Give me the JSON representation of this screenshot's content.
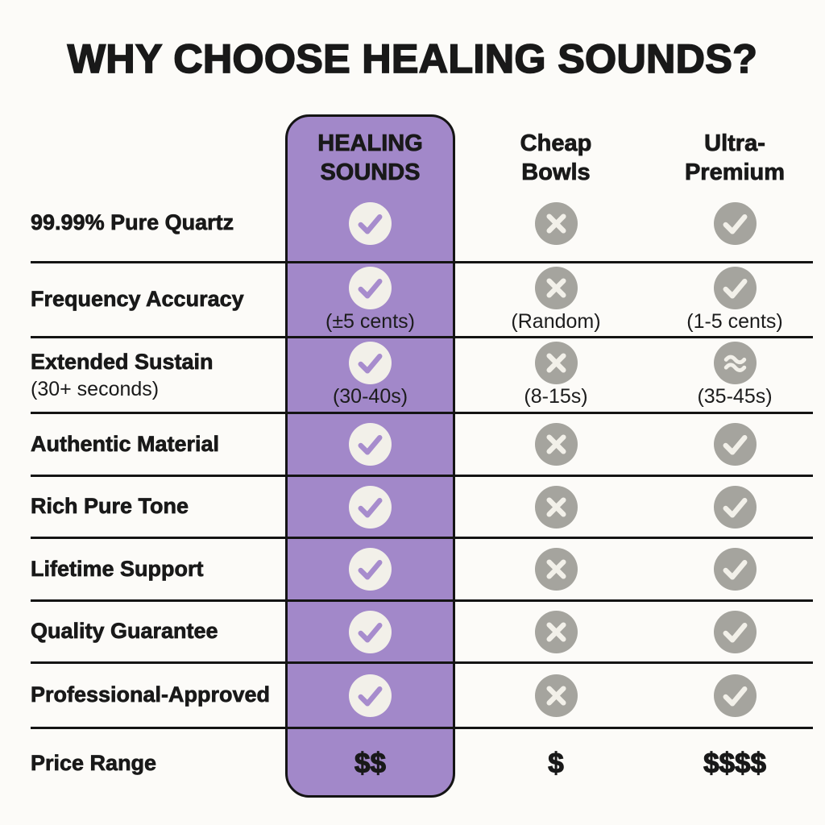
{
  "title": "WHY CHOOSE HEALING SOUNDS?",
  "columns": [
    {
      "key": "healing-sounds",
      "label": "HEALING\nSOUNDS",
      "highlighted": true
    },
    {
      "key": "cheap-bowls",
      "label": "Cheap\nBowls",
      "highlighted": false
    },
    {
      "key": "ultra-premium",
      "label": "Ultra-\nPremium",
      "highlighted": false
    }
  ],
  "rows": [
    {
      "feature": "99.99% Pure Quartz",
      "feature_note": "",
      "cells": [
        {
          "icon": "check",
          "note": ""
        },
        {
          "icon": "cross",
          "note": ""
        },
        {
          "icon": "check",
          "note": ""
        }
      ]
    },
    {
      "feature": "Frequency Accuracy",
      "feature_note": "",
      "cells": [
        {
          "icon": "check",
          "note": "(±5 cents)"
        },
        {
          "icon": "cross",
          "note": "(Random)"
        },
        {
          "icon": "check",
          "note": "(1-5 cents)"
        }
      ]
    },
    {
      "feature": "Extended Sustain",
      "feature_note": "(30+ seconds)",
      "cells": [
        {
          "icon": "check",
          "note": "(30-40s)"
        },
        {
          "icon": "cross",
          "note": "(8-15s)"
        },
        {
          "icon": "approx",
          "note": "(35-45s)"
        }
      ]
    },
    {
      "feature": "Authentic Material",
      "feature_note": "",
      "cells": [
        {
          "icon": "check",
          "note": ""
        },
        {
          "icon": "cross",
          "note": ""
        },
        {
          "icon": "check",
          "note": ""
        }
      ]
    },
    {
      "feature": "Rich Pure Tone",
      "feature_note": "",
      "cells": [
        {
          "icon": "check",
          "note": ""
        },
        {
          "icon": "cross",
          "note": ""
        },
        {
          "icon": "check",
          "note": ""
        }
      ]
    },
    {
      "feature": "Lifetime Support",
      "feature_note": "",
      "cells": [
        {
          "icon": "check",
          "note": ""
        },
        {
          "icon": "cross",
          "note": ""
        },
        {
          "icon": "check",
          "note": ""
        }
      ]
    },
    {
      "feature": "Quality Guarantee",
      "feature_note": "",
      "cells": [
        {
          "icon": "check",
          "note": ""
        },
        {
          "icon": "cross",
          "note": ""
        },
        {
          "icon": "check",
          "note": ""
        }
      ]
    },
    {
      "feature": "Professional-Approved",
      "feature_note": "",
      "cells": [
        {
          "icon": "check",
          "note": ""
        },
        {
          "icon": "cross",
          "note": ""
        },
        {
          "icon": "check",
          "note": ""
        }
      ]
    },
    {
      "feature": "Price Range",
      "feature_note": "",
      "cells": [
        {
          "text": "$$"
        },
        {
          "text": "$"
        },
        {
          "text": "$$$$"
        }
      ]
    }
  ],
  "icon_legend": {
    "check": "included",
    "cross": "not-included",
    "approx": "approximately"
  },
  "colors": {
    "accent": "#a288c9",
    "accent_check": "#a78ccd",
    "cream": "#f2f0e9",
    "gray": "#a5a49e",
    "ink": "#191919",
    "background": "#fcfbf8"
  }
}
